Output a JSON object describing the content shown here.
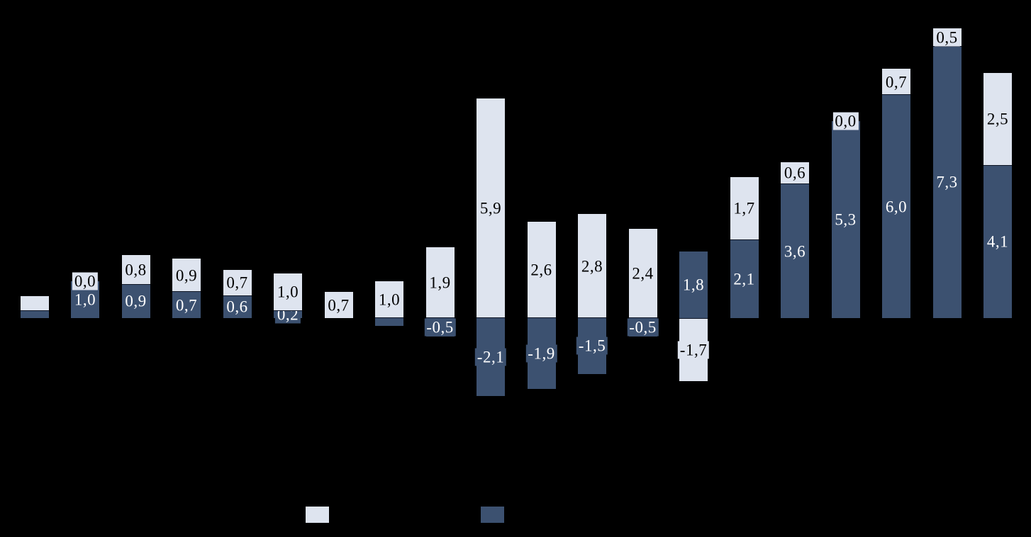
{
  "page": {
    "background_color": "#000000",
    "title": ""
  },
  "chart_data": {
    "type": "bar",
    "variant": "stacked-column",
    "title": "",
    "xlabel": "",
    "ylabel": "",
    "axes_text_visible": false,
    "gridlines_visible": false,
    "decimal_separator": ",",
    "baseline_value": 0,
    "approx_value_range": [
      -2.2,
      7.8
    ],
    "group_count": 20,
    "categories": [
      "",
      "",
      "",
      "",
      "",
      "",
      "",
      "",
      "",
      "",
      "",
      "",
      "",
      "",
      "",
      "",
      "",
      "",
      "",
      ""
    ],
    "series": [
      {
        "name": "dark",
        "stack_position": "bottom",
        "color": "#3c5170",
        "label_text_color": "#ffffff",
        "label_fill_color": "#3c5170",
        "values": [
          0.2,
          1.0,
          0.9,
          0.7,
          0.6,
          0.2,
          0.0,
          -0.2,
          -0.5,
          -2.1,
          -1.9,
          -1.5,
          -0.5,
          1.8,
          2.1,
          3.6,
          5.3,
          6.0,
          7.3,
          4.1
        ],
        "labels": [
          "",
          "1,0",
          "0,9",
          "0,7",
          "0,6",
          "0,2",
          "",
          "",
          "-0,5",
          "-2,1",
          "-1,9",
          "-1,5",
          "-0,5",
          "1,8",
          "2,1",
          "3,6",
          "5,3",
          "6,0",
          "7,3",
          "4,1"
        ]
      },
      {
        "name": "light",
        "stack_position": "top",
        "color": "#dee4ef",
        "label_text_color": "#000000",
        "label_fill_color": "#dee4ef",
        "values": [
          0.4,
          0.0,
          0.8,
          0.9,
          0.7,
          1.0,
          0.7,
          1.0,
          1.9,
          5.9,
          2.6,
          2.8,
          2.4,
          -1.7,
          1.7,
          0.6,
          0.0,
          0.7,
          0.5,
          2.5
        ],
        "labels": [
          "",
          "0,0",
          "0,8",
          "0,9",
          "0,7",
          "1,0",
          "0,7",
          "1,0",
          "1,9",
          "5,9",
          "2,6",
          "2,8",
          "2,4",
          "-1,7",
          "1,7",
          "0,6",
          "0,0",
          "0,7",
          "0,5",
          "2,5"
        ]
      }
    ],
    "legend": {
      "position": "bottom-center",
      "labels_visible": false,
      "items": [
        {
          "series": "light",
          "label": ""
        },
        {
          "series": "dark",
          "label": ""
        }
      ]
    },
    "junction_line_color": "#0e1524"
  }
}
